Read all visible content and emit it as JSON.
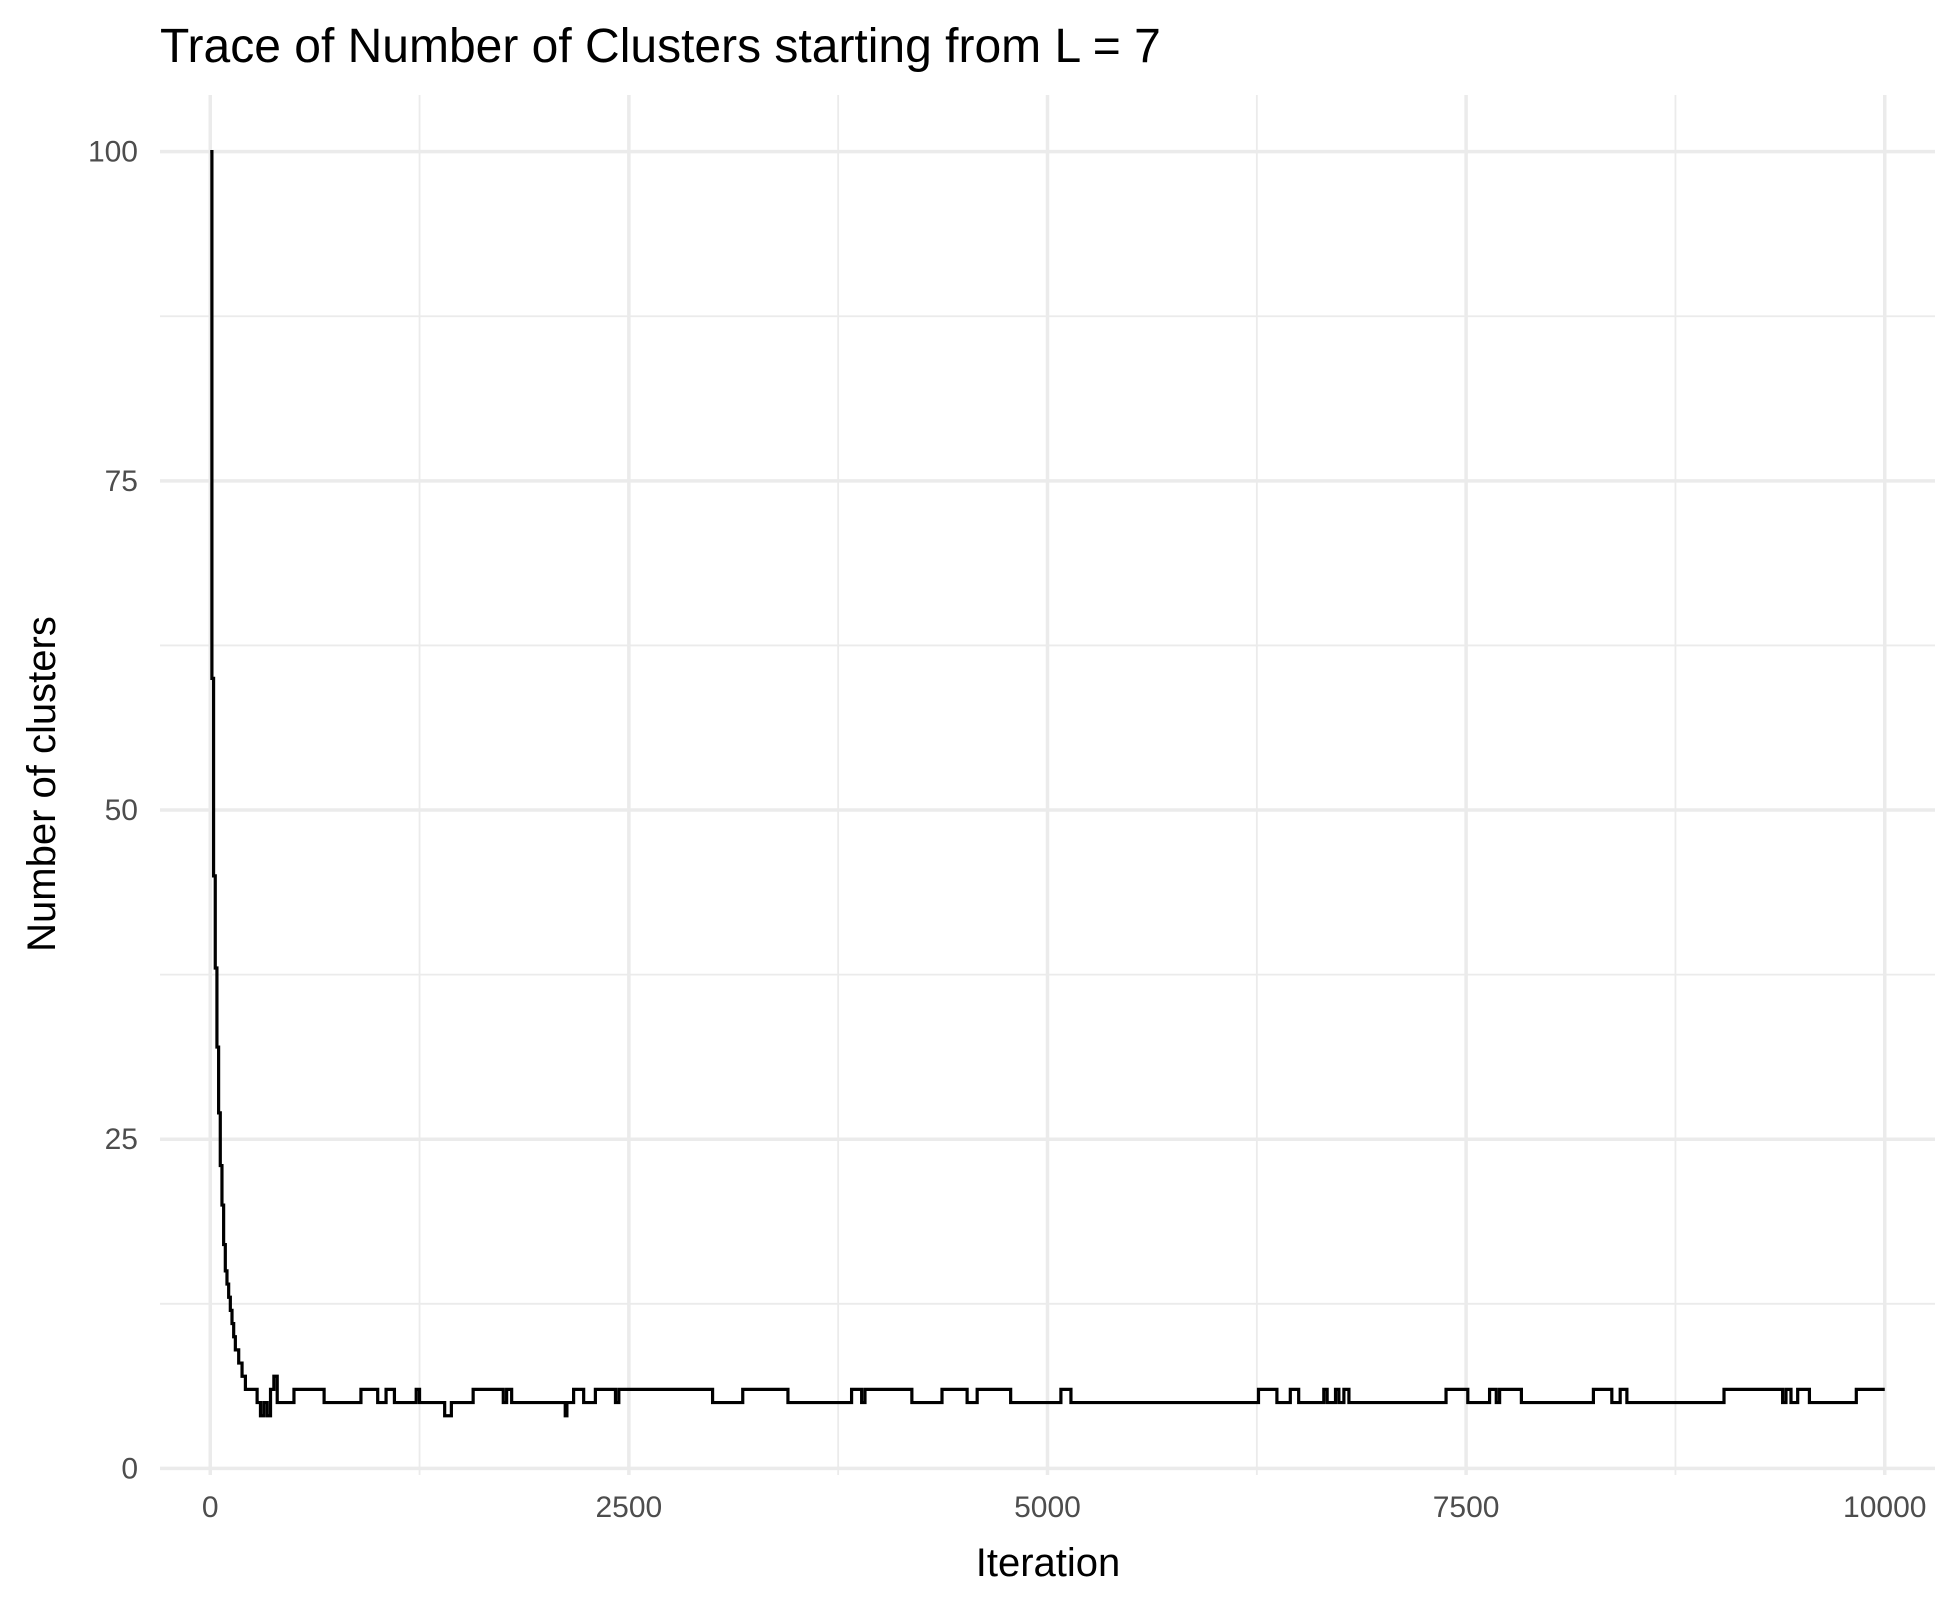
{
  "chart_data": {
    "type": "line",
    "title": "Trace of Number of Clusters starting from L = 7",
    "xlabel": "Iteration",
    "ylabel": "Number of clusters",
    "xlim": [
      -300,
      10300
    ],
    "ylim": [
      -0.5,
      104.3
    ],
    "x_ticks": [
      0,
      2500,
      5000,
      7500,
      10000
    ],
    "y_ticks": [
      0,
      25,
      50,
      75,
      100
    ],
    "x_tick_labels": [
      "0",
      "2500",
      "5000",
      "7500",
      "10000"
    ],
    "y_tick_labels": [
      "0",
      "25",
      "50",
      "75",
      "100"
    ],
    "grid": true,
    "line_color": "#000000",
    "series": [
      {
        "step": true,
        "x": [
          0,
          10,
          20,
          30,
          40,
          50,
          60,
          70,
          80,
          90,
          100,
          110,
          120,
          130,
          140,
          150,
          160,
          170,
          180,
          190,
          200,
          210,
          220,
          240,
          260,
          280,
          300,
          320,
          340,
          360,
          380,
          400,
          440,
          500,
          680,
          900,
          1000,
          1020,
          1050,
          1100,
          1180,
          1230,
          1250,
          1380,
          1400,
          1440,
          1570,
          1750,
          1770,
          1800,
          1830,
          2120,
          2130,
          2170,
          2230,
          2300,
          2420,
          2440,
          3000,
          3180,
          3450,
          3830,
          3890,
          3910,
          4180,
          4190,
          4370,
          4520,
          4580,
          4780,
          5080,
          5140,
          6260,
          6370,
          6450,
          6500,
          6650,
          6670,
          6720,
          6740,
          6770,
          6800,
          7300,
          7380,
          7510,
          7640,
          7680,
          7700,
          7830,
          8260,
          8370,
          8420,
          8460,
          9040,
          9390,
          9410,
          9440,
          9480,
          9550,
          9830,
          10000
        ],
        "y": [
          100,
          60,
          45,
          38,
          32,
          27,
          23,
          20,
          17,
          15,
          14,
          13,
          12,
          11,
          10,
          9,
          9,
          8,
          8,
          7,
          7,
          6,
          6,
          6,
          6,
          5,
          4,
          5,
          4,
          6,
          7,
          5,
          5,
          6,
          5,
          6,
          5,
          5,
          6,
          5,
          5,
          6,
          5,
          5,
          4,
          5,
          6,
          5,
          6,
          5,
          5,
          4,
          5,
          6,
          5,
          6,
          5,
          6,
          5,
          6,
          5,
          6,
          5,
          6,
          6,
          5,
          6,
          5,
          6,
          5,
          6,
          5,
          6,
          5,
          6,
          5,
          6,
          5,
          6,
          5,
          6,
          5,
          5,
          6,
          5,
          6,
          5,
          6,
          5,
          6,
          5,
          6,
          5,
          6,
          5,
          6,
          5,
          6,
          5,
          6,
          6
        ]
      }
    ]
  }
}
